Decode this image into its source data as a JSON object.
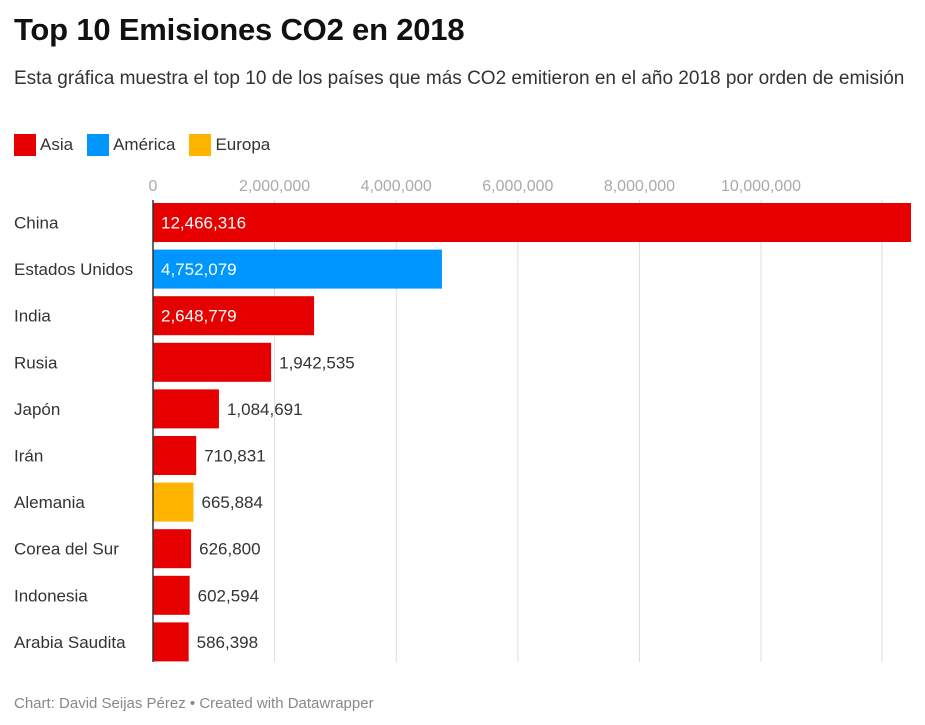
{
  "title": "Top 10 Emisiones CO2 en 2018",
  "subtitle": "Esta gráfica muestra el top 10 de los países que más CO2 emitieron en el año 2018 por orden de emisión",
  "legend": [
    {
      "label": "Asia",
      "color": "#e60000"
    },
    {
      "label": "América",
      "color": "#0096ff"
    },
    {
      "label": "Europa",
      "color": "#ffb400"
    }
  ],
  "footer": "Chart: David Seijas Pérez • Created with Datawrapper",
  "chart_data": {
    "type": "bar",
    "orientation": "horizontal",
    "categories": [
      "China",
      "Estados Unidos",
      "India",
      "Rusia",
      "Japón",
      "Irán",
      "Alemania",
      "Corea del Sur",
      "Indonesia",
      "Arabia Saudita"
    ],
    "values": [
      12466316,
      4752079,
      2648779,
      1942535,
      1084691,
      710831,
      665884,
      626800,
      602594,
      586398
    ],
    "value_labels": [
      "12,466,316",
      "4,752,079",
      "2,648,779",
      "1,942,535",
      "1,084,691",
      "710,831",
      "665,884",
      "626,800",
      "602,594",
      "586,398"
    ],
    "regions": [
      "Asia",
      "América",
      "Asia",
      "Asia",
      "Asia",
      "Asia",
      "Europa",
      "Asia",
      "Asia",
      "Asia"
    ],
    "x_ticks": [
      0,
      2000000,
      4000000,
      6000000,
      8000000,
      10000000
    ],
    "x_tick_labels": [
      "0",
      "2,000,000",
      "4,000,000",
      "6,000,000",
      "8,000,000",
      "10,000,000"
    ],
    "xlim": [
      0,
      12466316
    ],
    "grid": true,
    "legend_position": "top-left"
  }
}
